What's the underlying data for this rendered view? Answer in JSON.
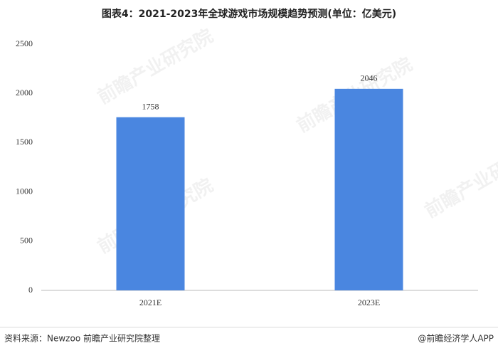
{
  "chart_data": {
    "type": "bar",
    "title": "图表4：2021-2023年全球游戏市场规模趋势预测(单位：亿美元)",
    "categories": [
      "2021E",
      "2023E"
    ],
    "values": [
      1758,
      2046
    ],
    "color": "#4a86e0",
    "ylim": [
      0,
      2500
    ],
    "yticks": [
      0,
      500,
      1000,
      1500,
      2000,
      2500
    ],
    "grid": false,
    "source": "资料来源：Newzoo 前瞻产业研究院整理",
    "credit": "@前瞻经济学人APP",
    "watermark": "前瞻产业研究院"
  }
}
